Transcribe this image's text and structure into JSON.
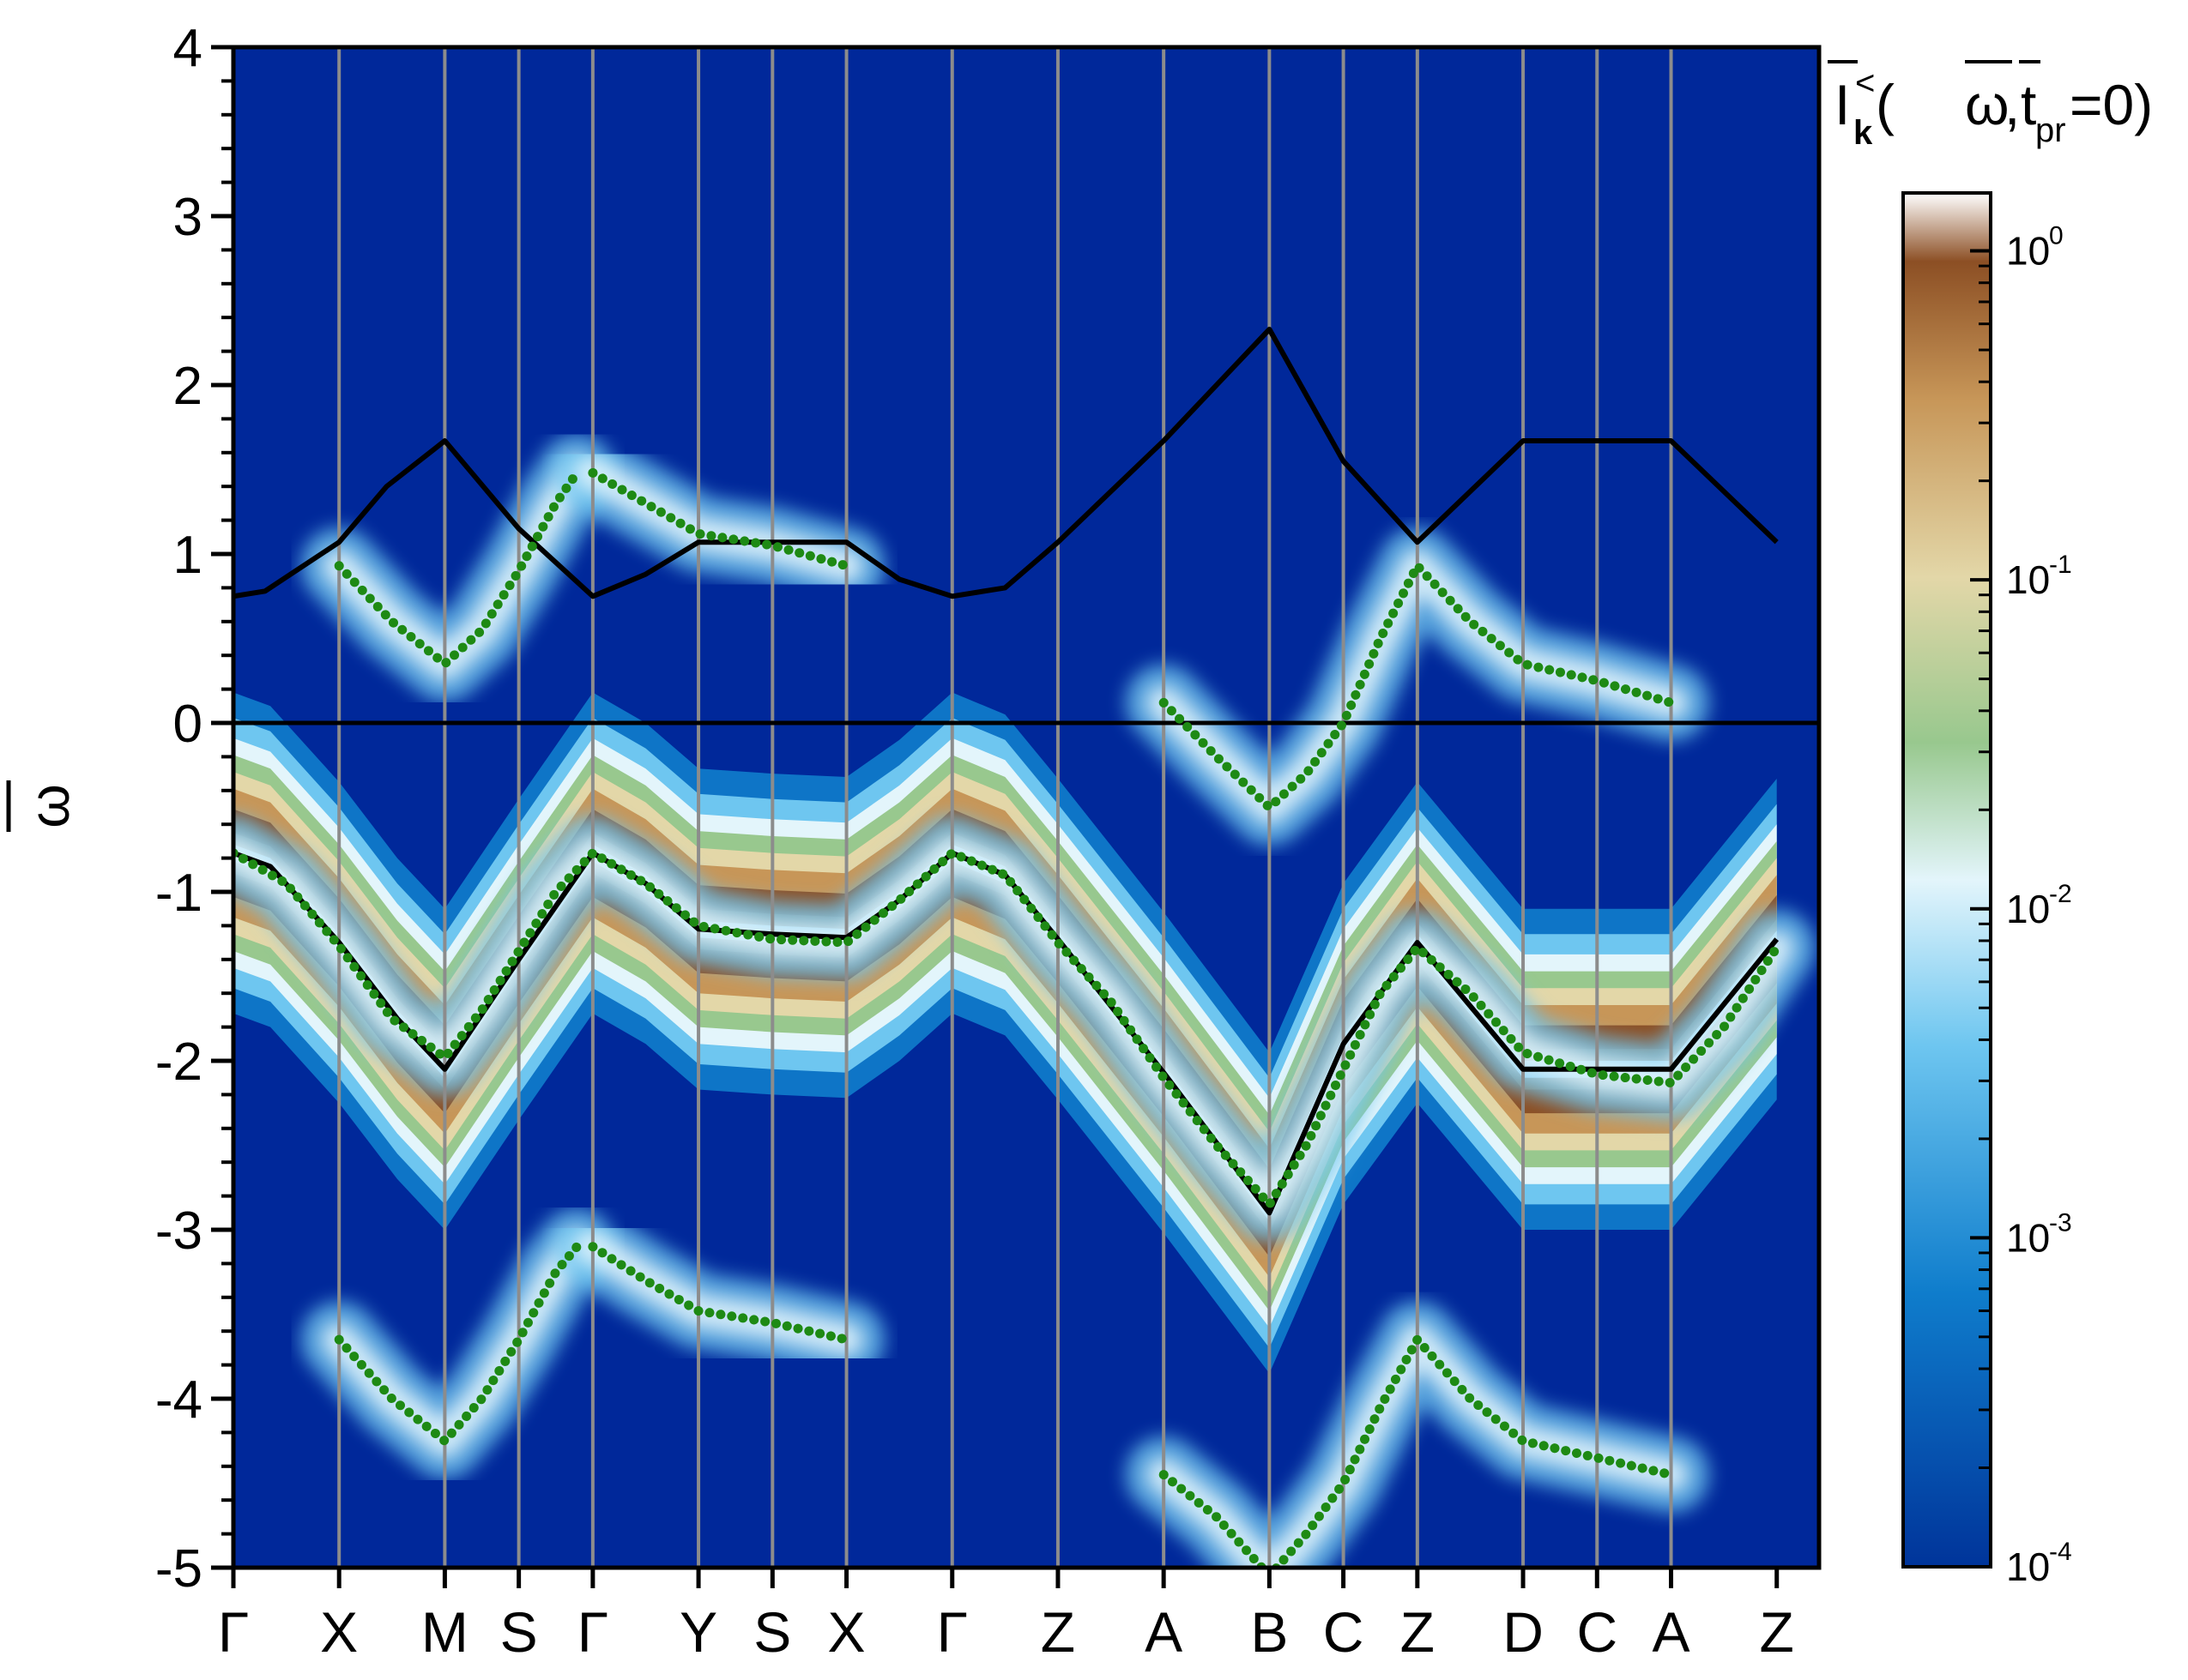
{
  "chart_data": {
    "type": "heatmap",
    "title": "I̅k<(ω̅,t̅pr=0)",
    "title_parts": {
      "base": "I",
      "sub": "k",
      "sup": "<",
      "args_open": "(",
      "omega": "ω",
      "sep": ",",
      "t": "t",
      "t_sub": "pr",
      "tail": "=0)"
    },
    "ylabel": "ω",
    "ylim": [
      -5,
      4
    ],
    "yticks": [
      "-5",
      "-4",
      "-3",
      "-2",
      "-1",
      "0",
      "1",
      "2",
      "3",
      "4"
    ],
    "xlim": [
      0,
      15
    ],
    "x_positions": [
      0,
      1,
      2,
      2.7,
      3.4,
      4.4,
      5.1,
      5.8,
      6.8,
      7.8,
      8.8,
      9.8,
      10.5,
      11.2,
      12.2,
      12.9,
      13.6,
      14.6
    ],
    "k_labels": [
      "Γ",
      "X",
      "M",
      "S",
      "Γ",
      "Y",
      "S",
      "X",
      "Γ",
      "Z",
      "A",
      "B",
      "C",
      "Z",
      "D",
      "C",
      "A",
      "Z"
    ],
    "grid": "vertical lines at high-symmetry points",
    "colorbar": {
      "scale": "log",
      "range": [
        0.0001,
        1.5
      ],
      "tick_bases": [
        "10",
        "10",
        "10",
        "10",
        "10"
      ],
      "tick_exponents": [
        "0",
        "-1",
        "-2",
        "-3",
        "-4"
      ],
      "tick_values": [
        1,
        0.1,
        0.01,
        0.001,
        0.0001
      ],
      "colors": [
        "#00349a",
        "#0f7dcc",
        "#6ec6f0",
        "#e3f5fb",
        "#98c88e",
        "#e3d7a8",
        "#c79658",
        "#8c4f24",
        "#ffffff"
      ]
    },
    "series": [
      {
        "style": "black line",
        "x": [
          0,
          0.35,
          1,
          1.55,
          2,
          2.7,
          3.4,
          3.9,
          4.4,
          5.1,
          5.8,
          6.3,
          6.8,
          7.3,
          7.8,
          8.8,
          9.8,
          10.5,
          11.2,
          12.2,
          12.9,
          13.6,
          14.6
        ],
        "y": [
          -0.77,
          -0.85,
          -1.3,
          -1.75,
          -2.05,
          -1.4,
          -0.77,
          -0.95,
          -1.22,
          -1.25,
          -1.27,
          -1.05,
          -0.77,
          -0.9,
          -1.28,
          -2.07,
          -2.9,
          -1.9,
          -1.3,
          -2.05,
          -2.05,
          -2.05,
          -1.28
        ]
      },
      {
        "style": "black line",
        "x": [
          0,
          0.3,
          1,
          1.45,
          2,
          2.7,
          3.4,
          3.9,
          4.4,
          5.1,
          5.8,
          6.3,
          6.8,
          7.3,
          7.8,
          8.8,
          9.8,
          10.5,
          11.2,
          12.2,
          12.9,
          13.6,
          14.6
        ],
        "y": [
          0.75,
          0.78,
          1.07,
          1.4,
          1.67,
          1.15,
          0.75,
          0.88,
          1.07,
          1.07,
          1.07,
          0.85,
          0.75,
          0.8,
          1.07,
          1.67,
          2.33,
          1.55,
          1.07,
          1.67,
          1.67,
          1.67,
          1.07
        ]
      },
      {
        "style": "green dotted",
        "x": [
          0,
          0.5,
          1,
          1.5,
          2,
          2.35,
          2.7,
          3.05,
          3.4,
          3.9,
          4.4,
          5.1,
          5.8,
          6.3,
          6.8,
          7.3,
          7.8,
          8.3,
          8.8,
          9.3,
          9.8,
          10.15,
          10.5,
          10.85,
          11.2,
          11.7,
          12.2,
          12.9,
          13.6,
          14.1,
          14.6
        ],
        "y": [
          -0.77,
          -0.95,
          -1.32,
          -1.75,
          -1.98,
          -1.7,
          -1.35,
          -1.0,
          -0.77,
          -0.95,
          -1.2,
          -1.28,
          -1.3,
          -1.05,
          -0.77,
          -0.9,
          -1.3,
          -1.65,
          -2.1,
          -2.5,
          -2.85,
          -2.5,
          -2.05,
          -1.6,
          -1.33,
          -1.6,
          -1.95,
          -2.08,
          -2.13,
          -1.8,
          -1.33
        ]
      },
      {
        "style": "green dotted",
        "x": [
          1,
          1.5,
          2,
          2.35,
          2.7,
          3.05,
          3.25
        ],
        "y": [
          0.93,
          0.6,
          0.35,
          0.55,
          0.9,
          1.3,
          1.48
        ]
      },
      {
        "style": "green dotted",
        "x": [
          3.4,
          3.9,
          4.4,
          5.1,
          5.8
        ],
        "y": [
          1.48,
          1.3,
          1.12,
          1.05,
          0.93
        ]
      },
      {
        "style": "green dotted",
        "x": [
          8.8,
          9.3,
          9.8,
          10.15,
          10.5,
          10.85,
          11.2,
          11.7,
          12.2,
          12.9,
          13.6
        ],
        "y": [
          0.12,
          -0.2,
          -0.5,
          -0.3,
          0.0,
          0.5,
          0.93,
          0.6,
          0.35,
          0.25,
          0.12
        ]
      },
      {
        "style": "green dotted",
        "x": [
          1,
          1.5,
          2,
          2.35,
          2.7,
          3.05,
          3.25
        ],
        "y": [
          -3.65,
          -4.0,
          -4.25,
          -4.0,
          -3.65,
          -3.25,
          -3.1
        ]
      },
      {
        "style": "green dotted",
        "x": [
          3.4,
          3.9,
          4.4,
          5.1,
          5.8
        ],
        "y": [
          -3.1,
          -3.3,
          -3.48,
          -3.55,
          -3.65
        ]
      },
      {
        "style": "green dotted",
        "x": [
          8.8,
          9.3,
          9.8,
          10.15,
          10.5,
          10.85,
          11.2,
          11.7,
          12.2,
          12.9,
          13.6
        ],
        "y": [
          -4.45,
          -4.7,
          -5.05,
          -4.8,
          -4.5,
          -4.05,
          -3.65,
          -4.0,
          -4.25,
          -4.35,
          -4.45
        ]
      }
    ]
  }
}
